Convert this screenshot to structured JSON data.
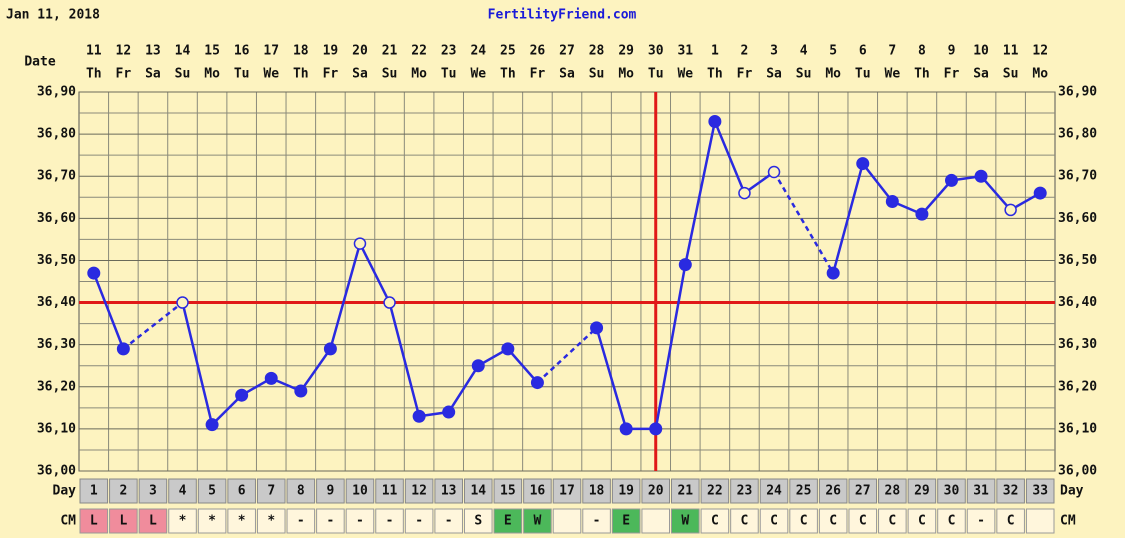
{
  "chart_data": {
    "type": "line",
    "date_header": "Jan 11, 2018",
    "title": "FertilityFriend.com",
    "date_label": "Date",
    "day_label": "Day",
    "cm_label": "CM",
    "dates": [
      "11",
      "12",
      "13",
      "14",
      "15",
      "16",
      "17",
      "18",
      "19",
      "20",
      "21",
      "22",
      "23",
      "24",
      "25",
      "26",
      "27",
      "28",
      "29",
      "30",
      "31",
      "1",
      "2",
      "3",
      "4",
      "5",
      "6",
      "7",
      "8",
      "9",
      "10",
      "11",
      "12"
    ],
    "weekdays": [
      "Th",
      "Fr",
      "Sa",
      "Su",
      "Mo",
      "Tu",
      "We",
      "Th",
      "Fr",
      "Sa",
      "Su",
      "Mo",
      "Tu",
      "We",
      "Th",
      "Fr",
      "Sa",
      "Su",
      "Mo",
      "Tu",
      "We",
      "Th",
      "Fr",
      "Sa",
      "Su",
      "Mo",
      "Tu",
      "We",
      "Th",
      "Fr",
      "Sa",
      "Su",
      "Mo"
    ],
    "x": [
      1,
      2,
      3,
      4,
      5,
      6,
      7,
      8,
      9,
      10,
      11,
      12,
      13,
      14,
      15,
      16,
      17,
      18,
      19,
      20,
      21,
      22,
      23,
      24,
      25,
      26,
      27,
      28,
      29,
      30,
      31,
      32,
      33
    ],
    "values": [
      36.47,
      36.29,
      null,
      36.4,
      36.11,
      36.18,
      36.22,
      36.19,
      36.29,
      36.54,
      36.4,
      36.13,
      36.14,
      36.25,
      36.29,
      36.21,
      null,
      36.34,
      36.1,
      36.1,
      36.49,
      36.83,
      36.66,
      36.71,
      null,
      36.47,
      36.73,
      36.64,
      36.61,
      36.69,
      36.7,
      36.62,
      36.66
    ],
    "hollow": [
      false,
      false,
      false,
      true,
      false,
      false,
      false,
      false,
      false,
      true,
      true,
      false,
      false,
      false,
      false,
      false,
      false,
      false,
      false,
      false,
      false,
      false,
      true,
      true,
      false,
      false,
      false,
      false,
      false,
      false,
      false,
      true,
      false
    ],
    "color": "#2a2ae0",
    "cm": [
      "L",
      "L",
      "L",
      "*",
      "*",
      "*",
      "*",
      "-",
      "-",
      "-",
      "-",
      "-",
      "-",
      "S",
      "E",
      "W",
      null,
      "-",
      "E",
      null,
      "W",
      "C",
      "C",
      "C",
      "C",
      "C",
      "C",
      "C",
      "C",
      "C",
      "-",
      "C",
      null
    ],
    "cm_colors": {
      "L": "#f08c9c",
      "E": "#4cb85a",
      "W": "#4cb85a"
    },
    "coverline": 36.4,
    "ovulation_day": 20,
    "line_color": "#e01818",
    "ylim": [
      36.0,
      36.9
    ],
    "yticks": [
      {
        "value": 36.0,
        "label": "36,00"
      },
      {
        "value": 36.1,
        "label": "36,10"
      },
      {
        "value": 36.2,
        "label": "36,20"
      },
      {
        "value": 36.3,
        "label": "36,30"
      },
      {
        "value": 36.4,
        "label": "36,40"
      },
      {
        "value": 36.5,
        "label": "36,50"
      },
      {
        "value": 36.6,
        "label": "36,60"
      },
      {
        "value": 36.7,
        "label": "36,70"
      },
      {
        "value": 36.8,
        "label": "36,80"
      },
      {
        "value": 36.9,
        "label": "36,90"
      }
    ],
    "grid": true
  }
}
